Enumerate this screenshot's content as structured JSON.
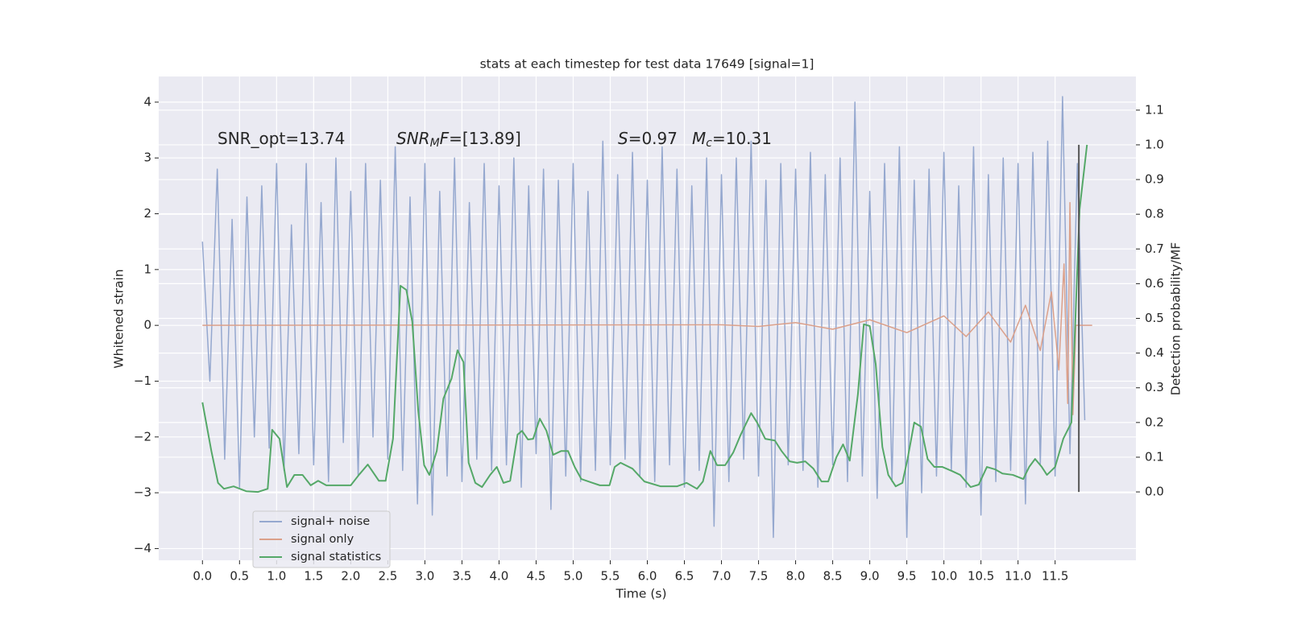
{
  "chart_data": {
    "type": "line",
    "title": "stats at each timestep for test data 17649 [signal=1]",
    "xlabel": "Time (s)",
    "ylabel": "Whitened strain",
    "y2label": "Detection probability/MF",
    "grid": true,
    "legend": "lower left",
    "xlim": [
      -0.59,
      12.59
    ],
    "ylim": [
      -4.21,
      4.46
    ],
    "y2lim": [
      -0.197,
      1.197
    ],
    "xticks": [
      {
        "value": 0,
        "label": "0.0"
      },
      {
        "value": 0.5,
        "label": "0.5"
      },
      {
        "value": 1,
        "label": "1.0"
      },
      {
        "value": 1.5,
        "label": "1.5"
      },
      {
        "value": 2,
        "label": "2.0"
      },
      {
        "value": 2.5,
        "label": "2.5"
      },
      {
        "value": 3,
        "label": "3.0"
      },
      {
        "value": 3.5,
        "label": "3.5"
      },
      {
        "value": 4,
        "label": "4.0"
      },
      {
        "value": 4.5,
        "label": "4.5"
      },
      {
        "value": 5,
        "label": "5.0"
      },
      {
        "value": 5.5,
        "label": "5.5"
      },
      {
        "value": 6,
        "label": "6.0"
      },
      {
        "value": 6.5,
        "label": "6.5"
      },
      {
        "value": 7,
        "label": "7.0"
      },
      {
        "value": 7.5,
        "label": "7.5"
      },
      {
        "value": 8,
        "label": "8.0"
      },
      {
        "value": 8.5,
        "label": "8.5"
      },
      {
        "value": 9,
        "label": "9.0"
      },
      {
        "value": 9.5,
        "label": "9.5"
      },
      {
        "value": 10,
        "label": "10.0"
      },
      {
        "value": 10.5,
        "label": "10.5"
      },
      {
        "value": 11,
        "label": "11.0"
      },
      {
        "value": 11.5,
        "label": "11.5"
      }
    ],
    "yticks": [
      {
        "value": -4,
        "label": "−4"
      },
      {
        "value": -3,
        "label": "−3"
      },
      {
        "value": -2,
        "label": "−2"
      },
      {
        "value": -1,
        "label": "−1"
      },
      0,
      1,
      2,
      3,
      4
    ],
    "y2ticks": [
      {
        "value": 0,
        "label": "0.0"
      },
      0.1,
      0.2,
      0.3,
      0.4,
      0.5,
      0.6,
      0.7,
      0.8,
      0.9,
      {
        "value": 1,
        "label": "1.0"
      },
      1.1
    ],
    "annotations": [
      [
        {
          "text": "SNR_opt=13.74"
        }
      ],
      [
        {
          "text": "SNR",
          "italic": true
        },
        {
          "text": "M",
          "italic": true,
          "sub": true
        },
        {
          "text": "F",
          "italic": true
        },
        {
          "text": "=[13.89]"
        }
      ],
      [
        {
          "text": "S",
          "italic": true
        },
        {
          "text": "=0.97"
        }
      ],
      [
        {
          "text": "M",
          "italic": true
        },
        {
          "text": "c",
          "italic": true,
          "sub": true
        },
        {
          "text": "=10.31"
        }
      ]
    ],
    "vline": {
      "x": 11.82,
      "y2": [
        0,
        1
      ],
      "color": "#555555"
    },
    "series": [
      {
        "name": "signal+ noise",
        "color": "#95a8cf",
        "x": [
          0,
          0.1,
          0.2,
          0.3,
          0.4,
          0.5,
          0.6,
          0.7,
          0.8,
          0.9,
          1,
          1.1,
          1.2,
          1.3,
          1.4,
          1.5,
          1.6,
          1.7,
          1.8,
          1.9,
          2,
          2.1,
          2.2,
          2.3,
          2.4,
          2.5,
          2.6,
          2.7,
          2.8,
          2.9,
          3,
          3.1,
          3.2,
          3.3,
          3.4,
          3.5,
          3.6,
          3.7,
          3.8,
          3.9,
          4,
          4.1,
          4.2,
          4.3,
          4.4,
          4.5,
          4.6,
          4.7,
          4.8,
          4.9,
          5,
          5.1,
          5.2,
          5.3,
          5.4,
          5.5,
          5.6,
          5.7,
          5.8,
          5.9,
          6,
          6.1,
          6.2,
          6.3,
          6.4,
          6.5,
          6.6,
          6.7,
          6.8,
          6.9,
          7,
          7.1,
          7.2,
          7.3,
          7.4,
          7.5,
          7.6,
          7.7,
          7.8,
          7.9,
          8,
          8.1,
          8.2,
          8.3,
          8.4,
          8.5,
          8.6,
          8.7,
          8.8,
          8.9,
          9,
          9.1,
          9.2,
          9.3,
          9.4,
          9.5,
          9.6,
          9.7,
          9.8,
          9.9,
          10,
          10.1,
          10.2,
          10.3,
          10.4,
          10.5,
          10.6,
          10.7,
          10.8,
          10.9,
          11,
          11.1,
          11.2,
          11.3,
          11.4,
          11.5,
          11.6,
          11.7,
          11.8,
          11.9
        ],
        "values": [
          1.5,
          -1.0,
          2.8,
          -2.4,
          1.9,
          -2.9,
          2.3,
          -2.0,
          2.5,
          -2.2,
          2.9,
          -2.6,
          1.8,
          -2.3,
          2.9,
          -2.5,
          2.2,
          -2.8,
          3.0,
          -2.1,
          2.4,
          -2.7,
          2.9,
          -2.0,
          2.6,
          -2.4,
          3.2,
          -2.6,
          2.3,
          -3.2,
          2.9,
          -3.4,
          2.4,
          -2.7,
          3.0,
          -2.8,
          2.2,
          -2.4,
          2.9,
          -2.6,
          2.5,
          -2.5,
          3.0,
          -2.9,
          2.5,
          -2.3,
          2.8,
          -3.3,
          2.6,
          -2.7,
          2.9,
          -2.8,
          2.4,
          -2.6,
          3.3,
          -2.5,
          2.7,
          -2.4,
          3.1,
          -2.7,
          2.6,
          -2.8,
          3.2,
          -2.5,
          2.8,
          -2.9,
          2.5,
          -2.6,
          3.0,
          -3.6,
          2.7,
          -2.8,
          3.0,
          -2.4,
          3.3,
          -2.7,
          2.6,
          -3.8,
          2.9,
          -2.5,
          2.8,
          -2.6,
          3.1,
          -2.9,
          2.7,
          -2.5,
          3.0,
          -2.8,
          4.0,
          -2.7,
          2.4,
          -3.1,
          2.9,
          -2.8,
          3.2,
          -3.8,
          2.6,
          -3.0,
          2.8,
          -2.7,
          3.1,
          -2.6,
          2.5,
          -2.9,
          3.2,
          -3.4,
          2.7,
          -2.8,
          3.0,
          -2.6,
          2.9,
          -3.2,
          3.1,
          -2.5,
          3.3,
          -2.7,
          4.1,
          -2.3,
          2.9,
          -1.7
        ]
      },
      {
        "name": "signal only",
        "color": "#dba08a",
        "x": [
          0,
          7.0,
          7.5,
          8.0,
          8.5,
          9.0,
          9.5,
          10.0,
          10.3,
          10.6,
          10.9,
          11.1,
          11.3,
          11.45,
          11.55,
          11.62,
          11.67,
          11.7,
          11.74,
          11.78,
          12.0
        ],
        "values": [
          0,
          0.01,
          -0.02,
          0.05,
          -0.07,
          0.1,
          -0.13,
          0.17,
          -0.2,
          0.24,
          -0.3,
          0.36,
          -0.45,
          0.6,
          -0.8,
          1.1,
          -1.4,
          2.2,
          -1.6,
          0,
          0
        ]
      },
      {
        "name": "signal statistics",
        "color": "#55a868",
        "axis": "y2",
        "x": [
          0,
          0.12,
          0.21,
          0.29,
          0.42,
          0.59,
          0.75,
          0.88,
          0.94,
          1.04,
          1.14,
          1.24,
          1.35,
          1.46,
          1.56,
          1.67,
          1.84,
          2.0,
          2.11,
          2.23,
          2.38,
          2.47,
          2.57,
          2.67,
          2.75,
          2.83,
          2.91,
          2.99,
          3.06,
          3.16,
          3.25,
          3.36,
          3.44,
          3.52,
          3.59,
          3.68,
          3.77,
          3.88,
          3.97,
          4.06,
          4.15,
          4.25,
          4.31,
          4.39,
          4.46,
          4.55,
          4.64,
          4.73,
          4.84,
          4.93,
          5.02,
          5.11,
          5.26,
          5.36,
          5.49,
          5.56,
          5.64,
          5.8,
          5.96,
          6.18,
          6.4,
          6.53,
          6.67,
          6.75,
          6.85,
          6.94,
          7.05,
          7.16,
          7.26,
          7.4,
          7.48,
          7.59,
          7.72,
          7.81,
          7.92,
          8.02,
          8.13,
          8.24,
          8.35,
          8.44,
          8.55,
          8.64,
          8.73,
          8.84,
          8.92,
          9.0,
          9.08,
          9.17,
          9.25,
          9.35,
          9.44,
          9.51,
          9.6,
          9.69,
          9.78,
          9.87,
          9.98,
          10.11,
          10.22,
          10.36,
          10.47,
          10.58,
          10.69,
          10.79,
          10.93,
          11.07,
          11.15,
          11.23,
          11.32,
          11.39,
          11.5,
          11.61,
          11.72,
          11.83,
          11.93
        ],
        "values": [
          0.258,
          0.118,
          0.026,
          0.009,
          0.016,
          0.002,
          0.0,
          0.009,
          0.179,
          0.153,
          0.014,
          0.049,
          0.049,
          0.019,
          0.032,
          0.019,
          0.019,
          0.019,
          0.049,
          0.079,
          0.032,
          0.032,
          0.153,
          0.594,
          0.582,
          0.49,
          0.234,
          0.077,
          0.049,
          0.118,
          0.269,
          0.327,
          0.408,
          0.374,
          0.084,
          0.026,
          0.014,
          0.049,
          0.072,
          0.026,
          0.032,
          0.165,
          0.176,
          0.151,
          0.153,
          0.211,
          0.176,
          0.107,
          0.118,
          0.118,
          0.072,
          0.037,
          0.026,
          0.019,
          0.019,
          0.072,
          0.084,
          0.067,
          0.03,
          0.016,
          0.016,
          0.026,
          0.009,
          0.03,
          0.118,
          0.077,
          0.077,
          0.114,
          0.165,
          0.227,
          0.2,
          0.153,
          0.148,
          0.118,
          0.088,
          0.084,
          0.088,
          0.067,
          0.03,
          0.03,
          0.1,
          0.137,
          0.09,
          0.281,
          0.483,
          0.478,
          0.369,
          0.13,
          0.049,
          0.016,
          0.026,
          0.095,
          0.2,
          0.188,
          0.095,
          0.072,
          0.072,
          0.06,
          0.049,
          0.014,
          0.021,
          0.072,
          0.065,
          0.053,
          0.049,
          0.037,
          0.072,
          0.095,
          0.072,
          0.049,
          0.072,
          0.153,
          0.2,
          0.814,
          1.0
        ]
      }
    ]
  }
}
